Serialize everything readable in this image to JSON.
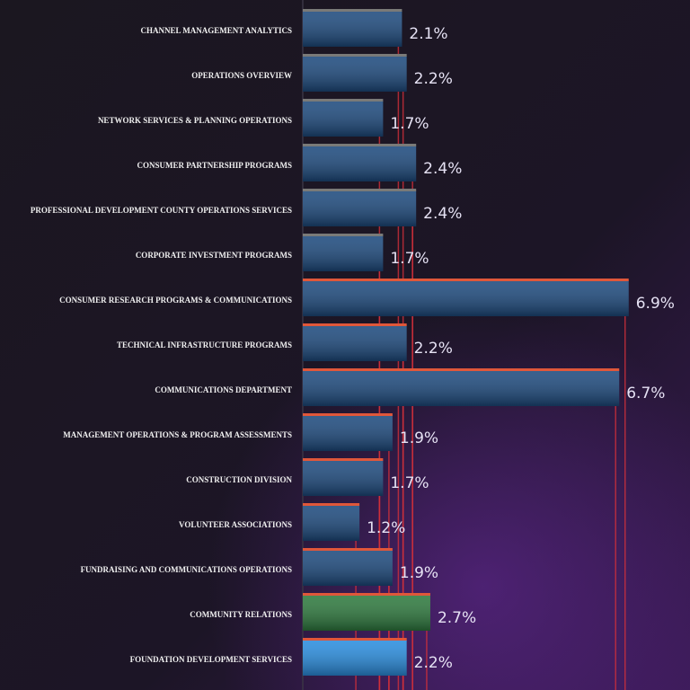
{
  "chart_data": {
    "type": "hbar",
    "categories": [
      "CHANNEL MANAGEMENT ANALYTICS",
      "OPERATIONS OVERVIEW",
      "NETWORK SERVICES & PLANNING OPERATIONS",
      "CONSUMER PARTNERSHIP PROGRAMS",
      "PROFESSIONAL DEVELOPMENT COUNTY OPERATIONS SERVICES",
      "CORPORATE INVESTMENT PROGRAMS",
      "CONSUMER RESEARCH PROGRAMS & COMMUNICATIONS",
      "TECHNICAL INFRASTRUCTURE PROGRAMS",
      "COMMUNICATIONS DEPARTMENT",
      "MANAGEMENT OPERATIONS & PROGRAM ASSESSMENTS",
      "CONSTRUCTION DIVISION",
      "VOLUNTEER ASSOCIATIONS",
      "FUNDRAISING AND COMMUNICATIONS OPERATIONS",
      "COMMUNITY RELATIONS",
      "FOUNDATION DEVELOPMENT SERVICES"
    ],
    "values": [
      2.1,
      2.2,
      1.7,
      2.4,
      2.4,
      1.7,
      6.9,
      2.2,
      6.7,
      1.9,
      1.7,
      1.2,
      1.9,
      2.7,
      2.2
    ],
    "value_labels": [
      "2.1%",
      "2.2%",
      "1.7%",
      "2.4%",
      "2.4%",
      "1.7%",
      "6.9%",
      "2.2%",
      "6.7%",
      "1.9%",
      "1.7%",
      "1.2%",
      "1.9%",
      "2.7%",
      "2.2%"
    ],
    "colors": [
      "#1d4a7e",
      "#1d4a7e",
      "#1d4a7e",
      "#1d4a7e",
      "#1d4a7e",
      "#1d4a7e",
      "#1d4a7e",
      "#1d4a7e",
      "#1d4a7e",
      "#1d4a7e",
      "#1d4a7e",
      "#1d4a7e",
      "#1d4a7e",
      "#2e7a3e",
      "#2a8ee0"
    ],
    "xlim": [
      0,
      7
    ]
  }
}
